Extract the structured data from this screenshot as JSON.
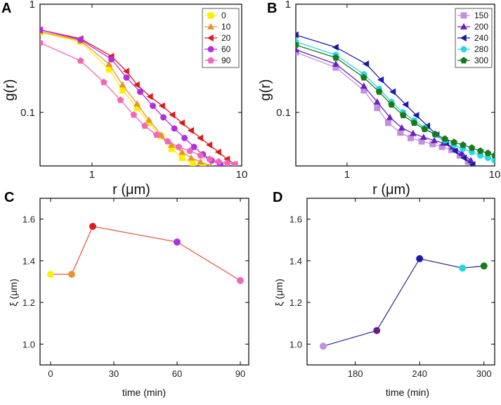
{
  "chart_data": [
    {
      "panel": "A",
      "type": "line",
      "xscale": "log",
      "yscale": "log",
      "xlabel": "r (μm)",
      "ylabel": "g(r)",
      "xlim": [
        0.45,
        10
      ],
      "ylim": [
        0.032,
        1.0
      ],
      "xticks": [
        {
          "v": 1,
          "label": "1"
        },
        {
          "v": 10,
          "label": "10"
        }
      ],
      "yticks": [
        {
          "v": 0.1,
          "label": "0.1"
        },
        {
          "v": 1,
          "label": "1"
        }
      ],
      "legend": {
        "position": "top-right"
      },
      "series": [
        {
          "name": "0",
          "color": "#ffee00",
          "marker": "square",
          "x": [
            0.45,
            0.84,
            1.3,
            1.6,
            2.0,
            2.4,
            2.9,
            3.4,
            4.0,
            4.7,
            5.5
          ],
          "y": [
            0.55,
            0.45,
            0.25,
            0.16,
            0.11,
            0.08,
            0.06,
            0.046,
            0.038,
            0.034,
            0.032
          ]
        },
        {
          "name": "10",
          "color": "#e8922f",
          "marker": "triangle-up",
          "x": [
            0.45,
            0.84,
            1.3,
            1.6,
            2.0,
            2.4,
            2.9,
            3.4,
            4.0,
            4.6,
            5.3,
            6.2
          ],
          "y": [
            0.56,
            0.46,
            0.28,
            0.18,
            0.12,
            0.085,
            0.062,
            0.05,
            0.043,
            0.038,
            0.035,
            0.032
          ]
        },
        {
          "name": "20",
          "color": "#dd1a1a",
          "marker": "triangle-left",
          "x": [
            0.45,
            0.84,
            1.35,
            1.7,
            2.0,
            2.45,
            2.95,
            3.45,
            4.0,
            4.6,
            5.3,
            6.1,
            7.0,
            8.0,
            9.0
          ],
          "y": [
            0.58,
            0.48,
            0.33,
            0.24,
            0.18,
            0.14,
            0.115,
            0.095,
            0.08,
            0.068,
            0.058,
            0.05,
            0.043,
            0.037,
            0.033
          ]
        },
        {
          "name": "60",
          "color": "#b22ee0",
          "marker": "circle",
          "x": [
            0.45,
            0.84,
            1.35,
            1.7,
            2.1,
            2.55,
            3.0,
            3.55,
            4.15,
            4.8,
            5.5,
            6.3,
            7.2
          ],
          "y": [
            0.58,
            0.47,
            0.31,
            0.21,
            0.155,
            0.115,
            0.09,
            0.071,
            0.058,
            0.048,
            0.041,
            0.036,
            0.033
          ]
        },
        {
          "name": "90",
          "color": "#f268b8",
          "marker": "pentagon",
          "x": [
            0.45,
            0.84,
            1.2,
            1.55,
            1.9,
            2.25,
            2.7,
            3.2,
            3.8,
            4.5,
            5.3,
            6.1,
            7.0,
            8.0,
            9.0
          ],
          "y": [
            0.44,
            0.3,
            0.19,
            0.13,
            0.095,
            0.075,
            0.062,
            0.054,
            0.048,
            0.044,
            0.04,
            0.037,
            0.035,
            0.034,
            0.033
          ]
        }
      ]
    },
    {
      "panel": "B",
      "type": "line",
      "xscale": "log",
      "yscale": "log",
      "xlabel": "r (μm)",
      "ylabel": "g(r)",
      "xlim": [
        0.45,
        10
      ],
      "ylim": [
        0.032,
        1.0
      ],
      "xticks": [
        {
          "v": 1,
          "label": "1"
        },
        {
          "v": 10,
          "label": "10"
        }
      ],
      "yticks": [
        {
          "v": 0.1,
          "label": "0.1"
        },
        {
          "v": 1,
          "label": "1"
        }
      ],
      "legend": {
        "position": "top-right"
      },
      "series": [
        {
          "name": "150",
          "color": "#c48fdd",
          "marker": "square",
          "x": [
            0.45,
            0.84,
            1.3,
            1.6,
            1.9,
            2.3,
            2.7,
            3.2,
            3.8,
            4.4,
            5.1,
            5.8,
            6.6
          ],
          "y": [
            0.36,
            0.26,
            0.16,
            0.11,
            0.08,
            0.065,
            0.058,
            0.054,
            0.051,
            0.048,
            0.045,
            0.04,
            0.035
          ]
        },
        {
          "name": "200",
          "color": "#6a1fc4",
          "marker": "triangle-up",
          "x": [
            0.45,
            0.84,
            1.3,
            1.6,
            1.95,
            2.35,
            2.8,
            3.3,
            3.9,
            4.5,
            5.2,
            6.0,
            6.9
          ],
          "y": [
            0.38,
            0.28,
            0.175,
            0.125,
            0.09,
            0.072,
            0.064,
            0.059,
            0.055,
            0.052,
            0.048,
            0.042,
            0.036
          ]
        },
        {
          "name": "240",
          "color": "#1a1aa8",
          "marker": "triangle-left",
          "x": [
            0.45,
            0.84,
            1.35,
            1.7,
            2.05,
            2.5,
            2.95,
            3.5,
            4.05,
            4.7,
            5.4,
            6.2,
            7.1
          ],
          "y": [
            0.52,
            0.4,
            0.28,
            0.2,
            0.155,
            0.118,
            0.094,
            0.075,
            0.062,
            0.052,
            0.044,
            0.038,
            0.033
          ]
        },
        {
          "name": "280",
          "color": "#22d8e8",
          "marker": "circle",
          "x": [
            0.45,
            0.84,
            1.3,
            1.65,
            2.0,
            2.4,
            2.85,
            3.35,
            3.95,
            4.6,
            5.3,
            6.1,
            7.0,
            8.0,
            9.0,
            10.0
          ],
          "y": [
            0.45,
            0.34,
            0.225,
            0.165,
            0.125,
            0.1,
            0.084,
            0.072,
            0.062,
            0.055,
            0.05,
            0.046,
            0.043,
            0.04,
            0.038,
            0.036
          ]
        },
        {
          "name": "300",
          "color": "#1a7a1a",
          "marker": "pentagon",
          "x": [
            0.45,
            0.84,
            1.3,
            1.65,
            2.0,
            2.4,
            2.85,
            3.35,
            3.95,
            4.6,
            5.3,
            6.1,
            7.0,
            8.0,
            9.0,
            10.0
          ],
          "y": [
            0.42,
            0.32,
            0.21,
            0.155,
            0.118,
            0.094,
            0.08,
            0.07,
            0.063,
            0.057,
            0.053,
            0.05,
            0.047,
            0.044,
            0.042,
            0.04
          ]
        }
      ]
    },
    {
      "panel": "C",
      "type": "line",
      "xlabel": "time (min)",
      "ylabel": "ξ (μm)",
      "xlim": [
        -5,
        94
      ],
      "ylim": [
        0.9,
        1.7
      ],
      "xticks": [
        {
          "v": 0,
          "label": "0"
        },
        {
          "v": 30,
          "label": "30"
        },
        {
          "v": 60,
          "label": "60"
        },
        {
          "v": 90,
          "label": "90"
        }
      ],
      "yticks": [
        {
          "v": 1.0,
          "label": "1.0"
        },
        {
          "v": 1.2,
          "label": "1.2"
        },
        {
          "v": 1.4,
          "label": "1.4"
        },
        {
          "v": 1.6,
          "label": "1.6"
        }
      ],
      "line_color": "#e8503a",
      "points": [
        {
          "x": 0,
          "y": 1.335,
          "color": "#ffee00"
        },
        {
          "x": 10,
          "y": 1.335,
          "color": "#e8922f"
        },
        {
          "x": 20,
          "y": 1.565,
          "color": "#dd1a1a"
        },
        {
          "x": 60,
          "y": 1.49,
          "color": "#b22ee0"
        },
        {
          "x": 90,
          "y": 1.305,
          "color": "#f268b8"
        }
      ]
    },
    {
      "panel": "D",
      "type": "line",
      "xlabel": "time (min)",
      "ylabel": "ξ (μm)",
      "xlim": [
        135,
        310
      ],
      "ylim": [
        0.9,
        1.7
      ],
      "xticks": [
        {
          "v": 180,
          "label": "180"
        },
        {
          "v": 240,
          "label": "240"
        },
        {
          "v": 300,
          "label": "300"
        }
      ],
      "yticks": [
        {
          "v": 1.0,
          "label": "1.0"
        },
        {
          "v": 1.2,
          "label": "1.2"
        },
        {
          "v": 1.4,
          "label": "1.4"
        },
        {
          "v": 1.6,
          "label": "1.6"
        }
      ],
      "line_color": "#2a2a8a",
      "points": [
        {
          "x": 150,
          "y": 0.99,
          "color": "#c48fdd"
        },
        {
          "x": 200,
          "y": 1.065,
          "color": "#6a1a8a"
        },
        {
          "x": 240,
          "y": 1.41,
          "color": "#1a1aa8"
        },
        {
          "x": 280,
          "y": 1.365,
          "color": "#22d8e8"
        },
        {
          "x": 300,
          "y": 1.375,
          "color": "#1a7a1a"
        }
      ]
    }
  ]
}
